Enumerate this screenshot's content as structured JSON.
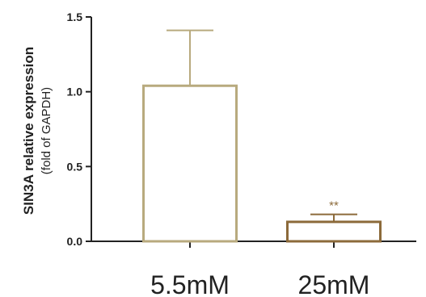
{
  "chart_data": {
    "type": "bar",
    "categories": [
      "5.5mM",
      "25mM"
    ],
    "values": [
      1.04,
      0.13
    ],
    "error_upper": [
      1.41,
      0.18
    ],
    "ylabel": "SIN3A relative expression",
    "ylabel_sub": "(fold of GAPDH)",
    "ylim": [
      0,
      1.5
    ],
    "yticks": [
      0.0,
      0.5,
      1.0,
      1.5
    ],
    "ytick_labels": [
      "0.0",
      "0.5",
      "1.0",
      "1.5"
    ],
    "annotations": [
      {
        "category": "25mM",
        "text": "**"
      }
    ],
    "colors": [
      "#b8aa7e",
      "#8c6a3a"
    ],
    "axis_color": "#222222",
    "grid": false
  }
}
